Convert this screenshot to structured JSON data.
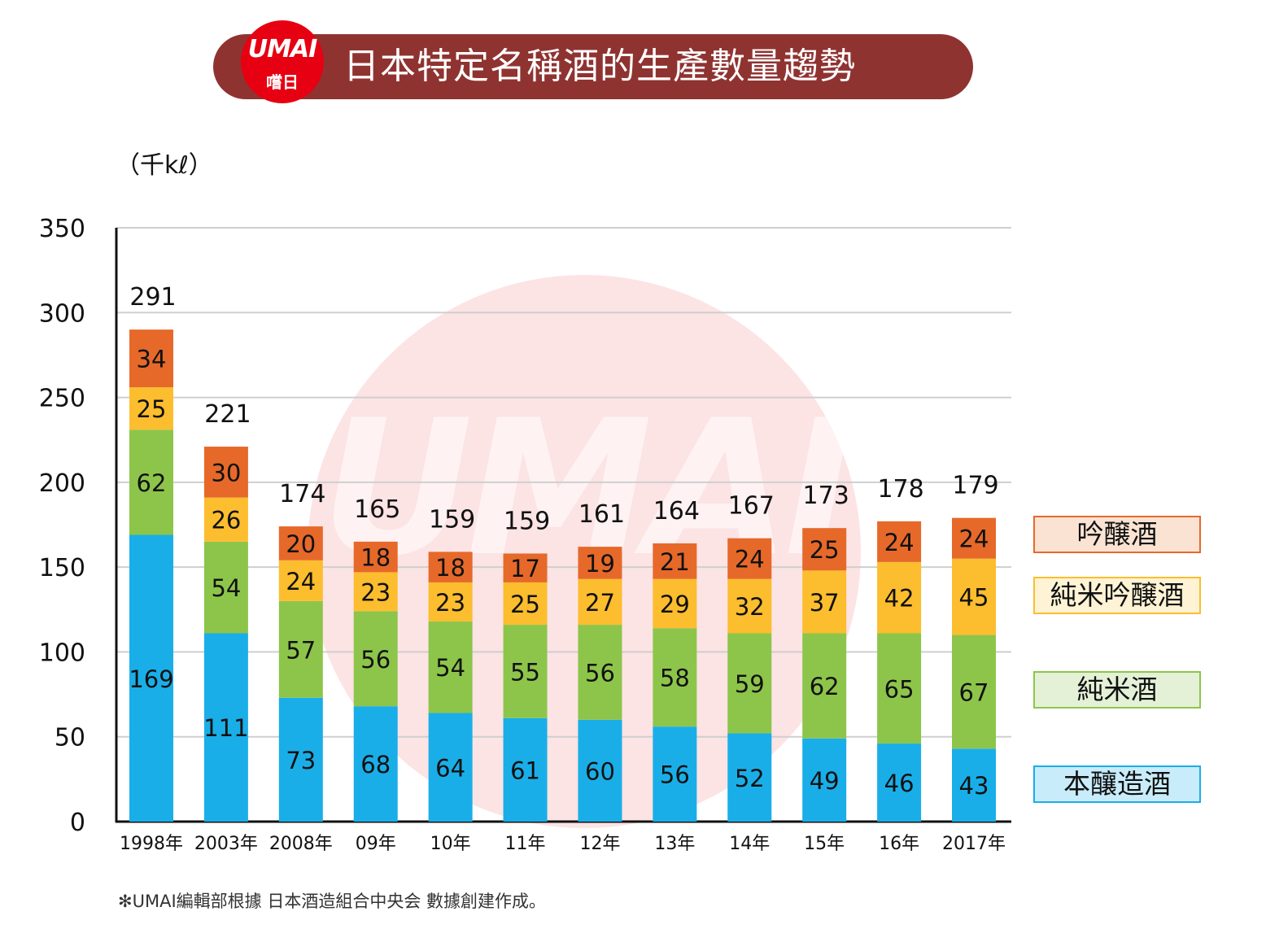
{
  "header": {
    "logo_text": "UMAI",
    "logo_sub": "嚐日",
    "title": "日本特定名稱酒的生產數量趨勢"
  },
  "watermark_text": "UMAI",
  "footnote": "✻UMAI編輯部根據 日本酒造組合中央会 數據創建作成。",
  "colors": {
    "title_bar": "#8f3331",
    "honjozo": "#1aaee8",
    "junmai": "#8dc54b",
    "junmai_ginjo": "#fcbd2e",
    "ginjo": "#e6692a"
  },
  "chart_data": {
    "type": "bar",
    "stacked": true,
    "unit": "（千kℓ）",
    "ylim": [
      0,
      350
    ],
    "yticks": [
      0,
      50,
      100,
      150,
      200,
      250,
      300,
      350
    ],
    "grid": true,
    "legend_position": "right",
    "categories": [
      "1998年",
      "2003年",
      "2008年",
      "09年",
      "10年",
      "11年",
      "12年",
      "13年",
      "14年",
      "15年",
      "16年",
      "2017年"
    ],
    "totals": [
      291,
      221,
      174,
      165,
      159,
      159,
      161,
      164,
      167,
      173,
      178,
      179
    ],
    "series": [
      {
        "name": "本釀造酒",
        "color": "#1aaee8",
        "legend_bg": "#c9ecfb",
        "values": [
          169,
          111,
          73,
          68,
          64,
          61,
          60,
          56,
          52,
          49,
          46,
          43
        ]
      },
      {
        "name": "純米酒",
        "color": "#8dc54b",
        "legend_bg": "#e4f1d7",
        "values": [
          62,
          54,
          57,
          56,
          54,
          55,
          56,
          58,
          59,
          62,
          65,
          67
        ]
      },
      {
        "name": "純米吟醸酒",
        "color": "#fcbd2e",
        "legend_bg": "#fef3d4",
        "values": [
          25,
          26,
          24,
          23,
          23,
          25,
          27,
          29,
          32,
          37,
          42,
          45
        ]
      },
      {
        "name": "吟醸酒",
        "color": "#e6692a",
        "legend_bg": "#fbe3d3",
        "values": [
          34,
          30,
          20,
          18,
          18,
          17,
          19,
          21,
          24,
          25,
          24,
          24
        ]
      }
    ]
  }
}
